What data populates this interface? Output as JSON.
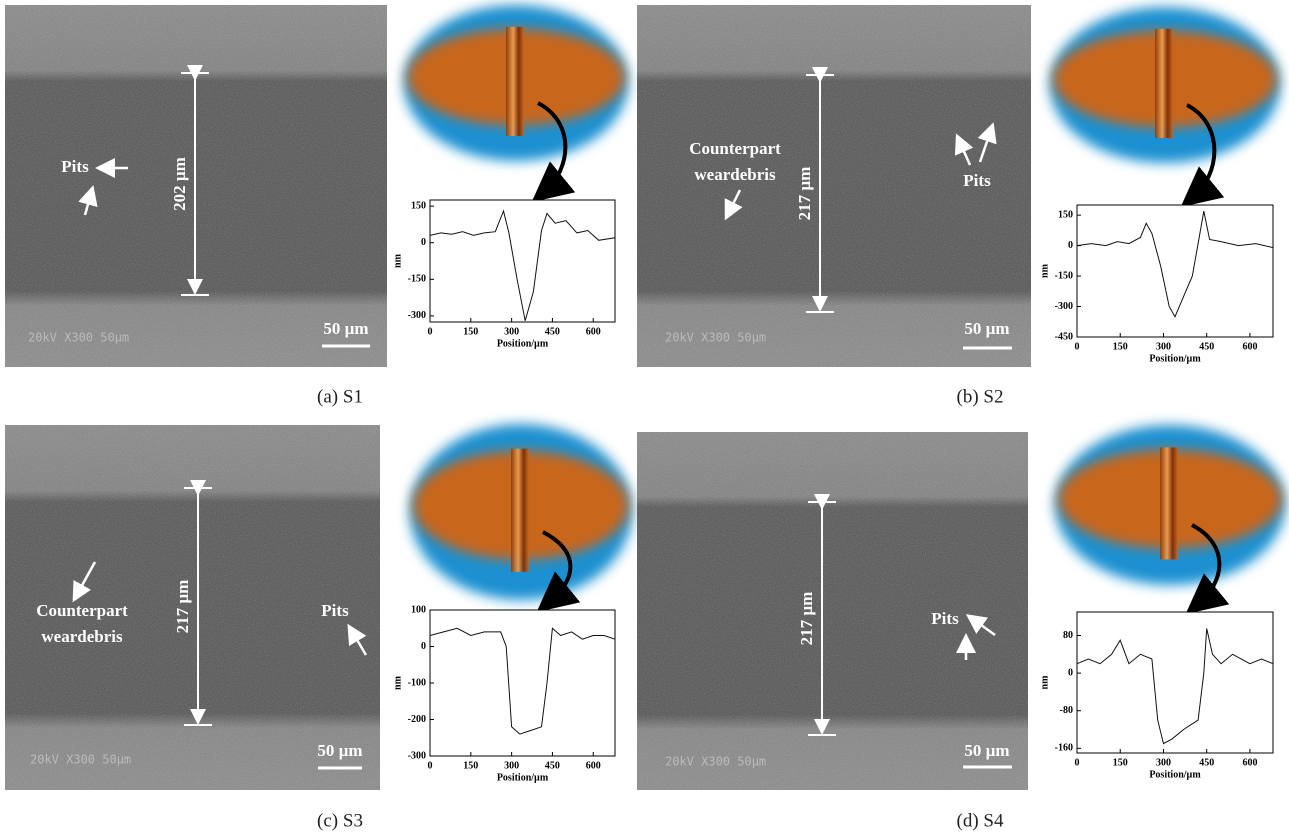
{
  "panels": [
    {
      "caption": "(a) S1",
      "sem": {
        "measure": "202 µm",
        "scale_bar": "50 µm",
        "info": "20kV  X300  50µm",
        "annotations": [
          [
            "Pits"
          ]
        ]
      },
      "profile": {
        "type": "line",
        "ylabel": "nm",
        "xlabel": "Position/µm",
        "xlim": [
          0,
          680
        ],
        "ylim": [
          -325,
          175
        ],
        "xticks": [
          0,
          150,
          300,
          450,
          600
        ],
        "yticks": [
          150,
          0,
          -150,
          -300
        ],
        "x": [
          0,
          40,
          80,
          120,
          160,
          200,
          240,
          270,
          290,
          320,
          350,
          380,
          410,
          430,
          460,
          500,
          540,
          580,
          620,
          680
        ],
        "values": [
          30,
          40,
          35,
          45,
          30,
          40,
          45,
          130,
          40,
          -150,
          -320,
          -200,
          50,
          120,
          80,
          90,
          40,
          50,
          10,
          20
        ]
      }
    },
    {
      "caption": "(b) S2",
      "sem": {
        "measure": "217 µm",
        "scale_bar": "50 µm",
        "info": "20kV  X300  50µm",
        "annotations": [
          [
            "Counterpart",
            "weardebris"
          ],
          [
            "Pits"
          ]
        ]
      },
      "profile": {
        "type": "line",
        "ylabel": "nm",
        "xlabel": "Position/µm",
        "xlim": [
          0,
          680
        ],
        "ylim": [
          -450,
          200
        ],
        "xticks": [
          0,
          150,
          300,
          450,
          600
        ],
        "yticks": [
          150,
          0,
          -150,
          -300,
          -450
        ],
        "x": [
          0,
          50,
          100,
          140,
          180,
          220,
          240,
          260,
          290,
          320,
          340,
          370,
          400,
          420,
          440,
          460,
          500,
          560,
          620,
          680
        ],
        "values": [
          0,
          10,
          0,
          20,
          10,
          40,
          110,
          60,
          -100,
          -300,
          -350,
          -250,
          -150,
          10,
          170,
          30,
          20,
          0,
          10,
          -10
        ]
      }
    },
    {
      "caption": "(c) S3",
      "sem": {
        "measure": "217 µm",
        "scale_bar": "50 µm",
        "info": "20kV  X300  50µm",
        "annotations": [
          [
            "Counterpart",
            "weardebris"
          ],
          [
            "Pits"
          ]
        ]
      },
      "profile": {
        "type": "line",
        "ylabel": "nm",
        "xlabel": "Position/µm",
        "xlim": [
          0,
          680
        ],
        "ylim": [
          -300,
          100
        ],
        "xticks": [
          0,
          150,
          300,
          450,
          600
        ],
        "yticks": [
          100,
          0,
          -100,
          -200,
          -300
        ],
        "x": [
          0,
          50,
          100,
          150,
          200,
          260,
          280,
          300,
          330,
          370,
          410,
          430,
          450,
          480,
          520,
          560,
          600,
          640,
          680
        ],
        "values": [
          30,
          40,
          50,
          30,
          40,
          40,
          0,
          -220,
          -240,
          -230,
          -220,
          -100,
          50,
          30,
          40,
          20,
          30,
          30,
          20
        ]
      }
    },
    {
      "caption": "(d) S4",
      "sem": {
        "measure": "217 µm",
        "scale_bar": "50 µm",
        "info": "20kV  X300  50µm",
        "annotations": [
          [
            "Pits"
          ]
        ]
      },
      "profile": {
        "type": "line",
        "ylabel": "nm",
        "xlabel": "Position/µm",
        "xlim": [
          0,
          680
        ],
        "ylim": [
          -170,
          130
        ],
        "xticks": [
          0,
          150,
          300,
          450,
          600
        ],
        "yticks": [
          80,
          0,
          -80,
          -160
        ],
        "x": [
          0,
          40,
          80,
          120,
          150,
          180,
          220,
          260,
          280,
          300,
          330,
          370,
          420,
          440,
          450,
          470,
          500,
          540,
          600,
          640,
          680
        ],
        "values": [
          20,
          30,
          20,
          40,
          70,
          20,
          40,
          30,
          -100,
          -150,
          -140,
          -120,
          -100,
          0,
          95,
          40,
          20,
          40,
          20,
          30,
          20
        ]
      }
    }
  ]
}
